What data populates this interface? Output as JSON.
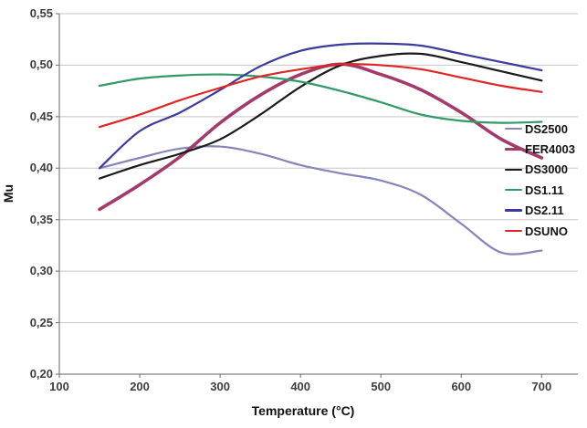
{
  "chart_data": {
    "type": "line",
    "title": "",
    "xlabel": "Temperature (°C)",
    "ylabel": "Mu",
    "x": [
      150,
      200,
      250,
      300,
      350,
      400,
      450,
      500,
      550,
      600,
      650,
      700
    ],
    "series": [
      {
        "name": "DS2500",
        "color": "#8585bb",
        "width": 2.2,
        "values": [
          0.4,
          0.41,
          0.419,
          0.421,
          0.414,
          0.403,
          0.395,
          0.388,
          0.374,
          0.346,
          0.318,
          0.32
        ]
      },
      {
        "name": "FER4003",
        "color": "#a23a6b",
        "width": 3.6,
        "values": [
          0.36,
          0.384,
          0.411,
          0.444,
          0.471,
          0.491,
          0.501,
          0.491,
          0.476,
          0.454,
          0.428,
          0.41
        ]
      },
      {
        "name": "DS3000",
        "color": "#1a1a1a",
        "width": 2.2,
        "values": [
          0.39,
          0.403,
          0.414,
          0.428,
          0.452,
          0.479,
          0.5,
          0.509,
          0.511,
          0.503,
          0.494,
          0.485
        ]
      },
      {
        "name": "DS1.11",
        "color": "#339966",
        "width": 2.2,
        "values": [
          0.48,
          0.487,
          0.49,
          0.491,
          0.489,
          0.484,
          0.475,
          0.464,
          0.452,
          0.446,
          0.444,
          0.445
        ]
      },
      {
        "name": "DS2.11",
        "color": "#3b3b9e",
        "width": 2.2,
        "values": [
          0.4,
          0.436,
          0.454,
          0.476,
          0.499,
          0.514,
          0.52,
          0.521,
          0.519,
          0.511,
          0.503,
          0.495
        ]
      },
      {
        "name": "DSUNO",
        "color": "#e02525",
        "width": 2.2,
        "values": [
          0.44,
          0.452,
          0.466,
          0.478,
          0.489,
          0.496,
          0.501,
          0.5,
          0.496,
          0.488,
          0.48,
          0.474
        ]
      }
    ],
    "xlim": [
      100,
      745
    ],
    "ylim": [
      0.2,
      0.55
    ],
    "xticks": {
      "values": [
        100,
        200,
        300,
        400,
        500,
        600,
        700
      ],
      "labels": [
        "100",
        "200",
        "300",
        "400",
        "500",
        "600",
        "700"
      ]
    },
    "yticks": {
      "values": [
        0.2,
        0.25,
        0.3,
        0.35,
        0.4,
        0.45,
        0.5,
        0.55
      ],
      "labels": [
        "0,20",
        "0,25",
        "0,30",
        "0,35",
        "0,40",
        "0,45",
        "0,50",
        "0,55"
      ]
    },
    "grid": "horizontal",
    "legend_position": "inside-right",
    "colors": {
      "axis": "#808080",
      "gridline": "#c6c6c6",
      "background": "#ffffff"
    }
  }
}
